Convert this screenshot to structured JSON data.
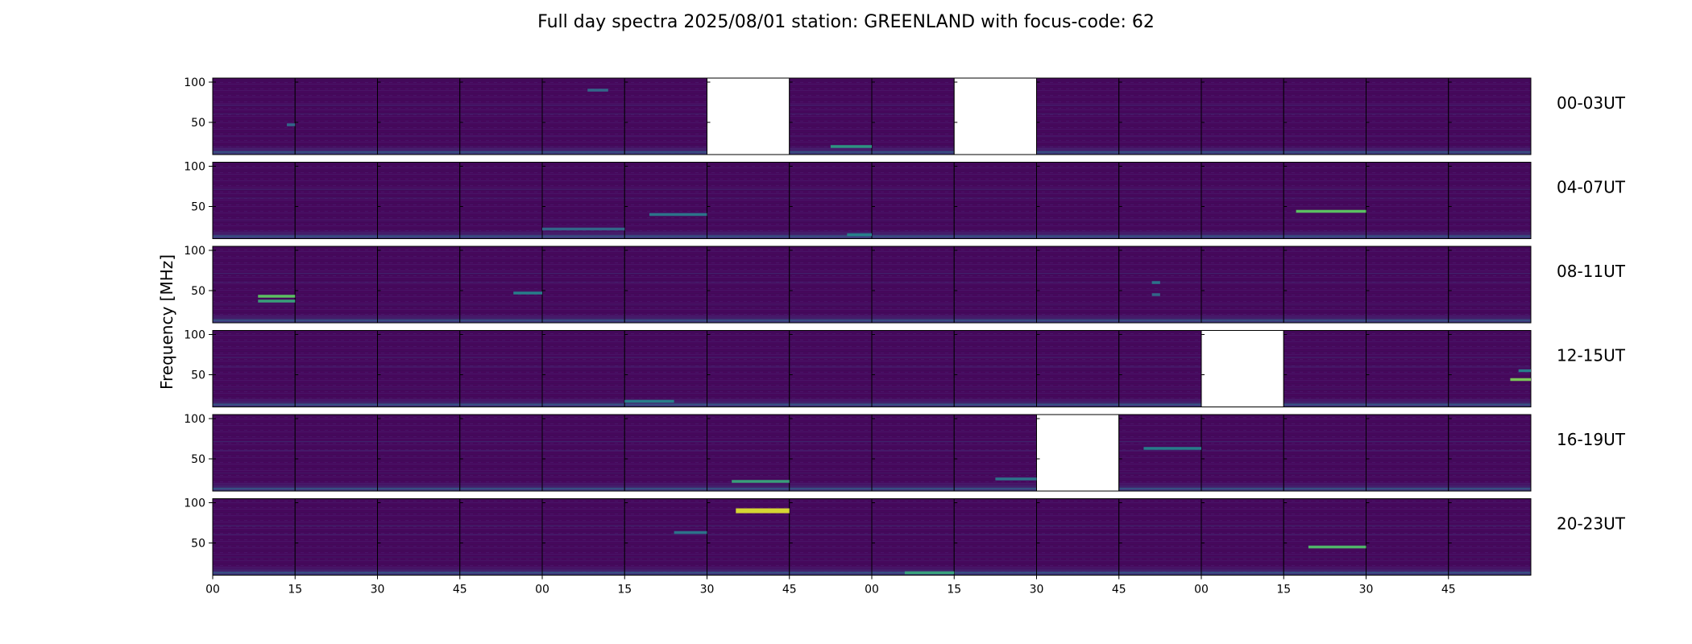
{
  "title": "Full day spectra 2025/08/01 station: GREENLAND with focus-code: 62",
  "ylabel": "Frequency [MHz]",
  "chart_data": {
    "type": "heatmap",
    "title": "Full day spectra 2025/08/01 station: GREENLAND with focus-code: 62",
    "ylabel": "Frequency [MHz]",
    "ylim": [
      10,
      105
    ],
    "yticks": [
      "100",
      "50"
    ],
    "xticks": [
      "00",
      "15",
      "30",
      "45",
      "00",
      "15",
      "30",
      "45",
      "00",
      "15",
      "30",
      "45",
      "00",
      "15",
      "30",
      "45"
    ],
    "panels_per_row": 16,
    "panel_minutes": 15,
    "colormap": [
      "#440154",
      "#3b528b",
      "#21918c",
      "#5ec962",
      "#fde725"
    ],
    "rows": [
      {
        "label": "00-03UT",
        "missing": [
          6,
          9
        ],
        "features": [
          {
            "panel": 4,
            "freq": 90,
            "intensity": 0.35,
            "x0": 0.55,
            "x1": 0.8
          },
          {
            "panel": 7,
            "freq": 20,
            "intensity": 0.55,
            "x0": 0.5,
            "x1": 1.0
          },
          {
            "panel": 0,
            "freq": 47,
            "intensity": 0.35,
            "x0": 0.9,
            "x1": 1.0
          }
        ]
      },
      {
        "label": "04-07UT",
        "missing": [],
        "features": [
          {
            "panel": 13,
            "freq": 44,
            "intensity": 0.75,
            "x0": 0.15,
            "x1": 1.0
          },
          {
            "panel": 5,
            "freq": 40,
            "intensity": 0.4,
            "x0": 0.3,
            "x1": 1.0
          },
          {
            "panel": 4,
            "freq": 22,
            "intensity": 0.35,
            "x0": 0.0,
            "x1": 1.0
          },
          {
            "panel": 7,
            "freq": 15,
            "intensity": 0.45,
            "x0": 0.7,
            "x1": 1.0
          }
        ]
      },
      {
        "label": "08-11UT",
        "missing": [],
        "features": [
          {
            "panel": 0,
            "freq": 43,
            "intensity": 0.75,
            "x0": 0.55,
            "x1": 1.0
          },
          {
            "panel": 0,
            "freq": 37,
            "intensity": 0.6,
            "x0": 0.55,
            "x1": 1.0
          },
          {
            "panel": 3,
            "freq": 47,
            "intensity": 0.45,
            "x0": 0.65,
            "x1": 1.0
          },
          {
            "panel": 11,
            "freq": 60,
            "intensity": 0.4,
            "x0": 0.4,
            "x1": 0.5
          },
          {
            "panel": 11,
            "freq": 45,
            "intensity": 0.35,
            "x0": 0.4,
            "x1": 0.5
          }
        ]
      },
      {
        "label": "12-15UT",
        "missing": [
          12
        ],
        "features": [
          {
            "panel": 15,
            "freq": 44,
            "intensity": 0.8,
            "x0": 0.75,
            "x1": 1.0
          },
          {
            "panel": 15,
            "freq": 55,
            "intensity": 0.45,
            "x0": 0.85,
            "x1": 1.0
          },
          {
            "panel": 5,
            "freq": 17,
            "intensity": 0.45,
            "x0": 0.0,
            "x1": 0.6
          }
        ]
      },
      {
        "label": "16-19UT",
        "missing": [
          10
        ],
        "features": [
          {
            "panel": 6,
            "freq": 22,
            "intensity": 0.6,
            "x0": 0.3,
            "x1": 1.0
          },
          {
            "panel": 11,
            "freq": 63,
            "intensity": 0.45,
            "x0": 0.3,
            "x1": 1.0
          },
          {
            "panel": 9,
            "freq": 25,
            "intensity": 0.4,
            "x0": 0.5,
            "x1": 1.0
          }
        ]
      },
      {
        "label": "20-23UT",
        "missing": [],
        "features": [
          {
            "panel": 6,
            "freq": 90,
            "intensity": 0.95,
            "x0": 0.35,
            "x1": 1.0
          },
          {
            "panel": 13,
            "freq": 45,
            "intensity": 0.7,
            "x0": 0.3,
            "x1": 1.0
          },
          {
            "panel": 8,
            "freq": 13,
            "intensity": 0.6,
            "x0": 0.4,
            "x1": 1.0
          },
          {
            "panel": 5,
            "freq": 63,
            "intensity": 0.4,
            "x0": 0.6,
            "x1": 1.0
          }
        ]
      }
    ]
  }
}
